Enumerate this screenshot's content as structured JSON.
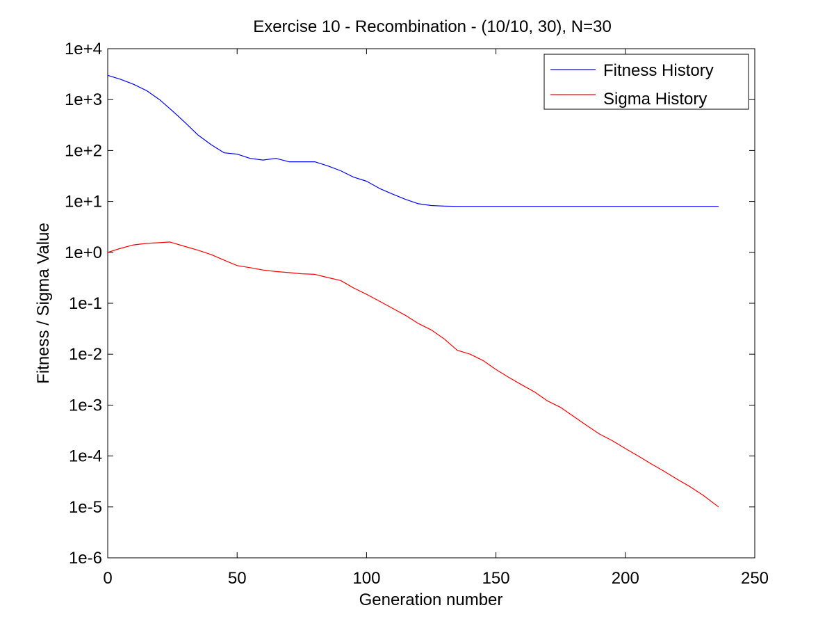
{
  "chart_data": {
    "type": "line",
    "title": "Exercise 10 - Recombination - (10/10, 30), N=30",
    "xlabel": "Generation number",
    "ylabel": "Fitness / Sigma Value",
    "xlim": [
      0,
      250
    ],
    "ylim": [
      1e-06,
      10000.0
    ],
    "yscale": "log",
    "xticks": [
      0,
      50,
      100,
      150,
      200,
      250
    ],
    "xtick_labels": [
      "0",
      "50",
      "100",
      "150",
      "200",
      "250"
    ],
    "yticks": [
      1e-06,
      1e-05,
      0.0001,
      0.001,
      0.01,
      0.1,
      1,
      10,
      100,
      1000,
      10000
    ],
    "ytick_labels": [
      "1e-6",
      "1e-5",
      "1e-4",
      "1e-3",
      "1e-2",
      "1e-1",
      "1e+0",
      "1e+1",
      "1e+2",
      "1e+3",
      "1e+4"
    ],
    "grid": false,
    "legend_position": "top-right",
    "series": [
      {
        "name": "Fitness History",
        "color": "#0000ff",
        "x": [
          0,
          5,
          10,
          15,
          20,
          25,
          30,
          35,
          40,
          45,
          50,
          55,
          60,
          65,
          70,
          75,
          80,
          85,
          90,
          95,
          100,
          105,
          110,
          115,
          120,
          125,
          130,
          135,
          140,
          150,
          175,
          200,
          225,
          236
        ],
        "y": [
          3000,
          2500,
          2000,
          1500,
          1000,
          600,
          350,
          200,
          130,
          90,
          85,
          70,
          65,
          70,
          60,
          60,
          60,
          50,
          40,
          30,
          25,
          18,
          14,
          11,
          9,
          8.3,
          8.1,
          8.0,
          8.0,
          8.0,
          8.0,
          8.0,
          8.0,
          8.0
        ]
      },
      {
        "name": "Sigma History",
        "color": "#ff0000",
        "x": [
          0,
          5,
          10,
          15,
          20,
          24,
          30,
          35,
          40,
          45,
          50,
          55,
          60,
          65,
          70,
          75,
          80,
          85,
          90,
          95,
          100,
          105,
          110,
          115,
          120,
          125,
          130,
          135,
          140,
          145,
          150,
          155,
          160,
          165,
          170,
          175,
          180,
          185,
          190,
          195,
          200,
          205,
          210,
          215,
          220,
          225,
          230,
          236
        ],
        "y": [
          1.0,
          1.2,
          1.4,
          1.5,
          1.55,
          1.6,
          1.3,
          1.1,
          0.9,
          0.7,
          0.55,
          0.5,
          0.45,
          0.42,
          0.4,
          0.38,
          0.37,
          0.32,
          0.28,
          0.2,
          0.15,
          0.11,
          0.08,
          0.058,
          0.04,
          0.03,
          0.02,
          0.012,
          0.01,
          0.0075,
          0.005,
          0.0035,
          0.0025,
          0.0018,
          0.0012,
          0.0009,
          0.0006,
          0.0004,
          0.00027,
          0.0002,
          0.00014,
          0.0001,
          7e-05,
          5e-05,
          3.5e-05,
          2.5e-05,
          1.7e-05,
          1e-05
        ]
      }
    ]
  }
}
